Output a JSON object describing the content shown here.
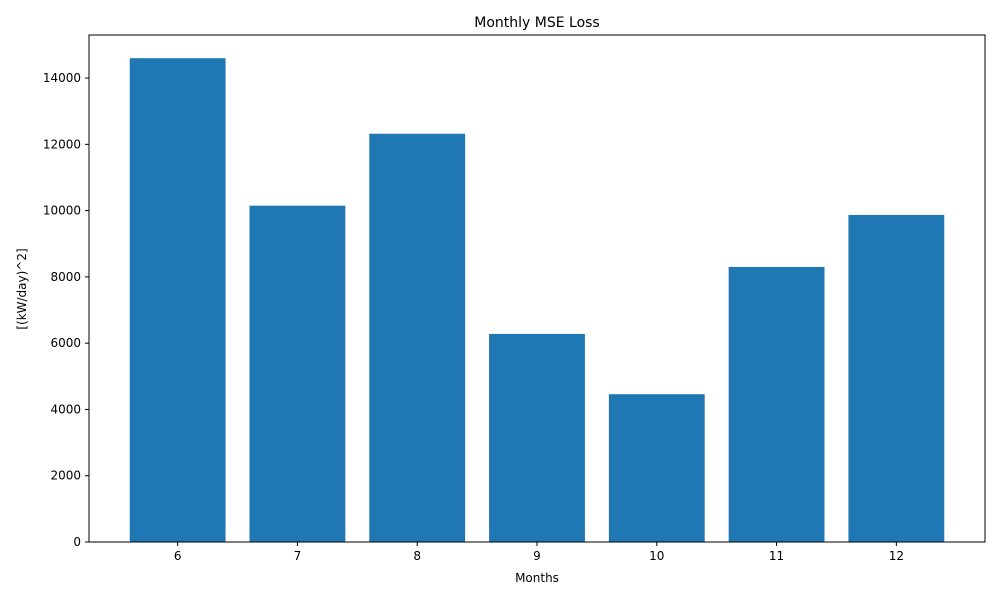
{
  "chart_data": {
    "type": "bar",
    "title": "Monthly MSE Loss",
    "xlabel": "Months",
    "ylabel": "[(kW/day)^2]",
    "categories": [
      "6",
      "7",
      "8",
      "9",
      "10",
      "11",
      "12"
    ],
    "values": [
      14600,
      10150,
      12320,
      6280,
      4460,
      8300,
      9870
    ],
    "ylim": [
      0,
      15300
    ],
    "yticks": [
      0,
      2000,
      4000,
      6000,
      8000,
      10000,
      12000,
      14000
    ],
    "bar_color": "#1f77b4",
    "grid": false,
    "legend": "none"
  }
}
